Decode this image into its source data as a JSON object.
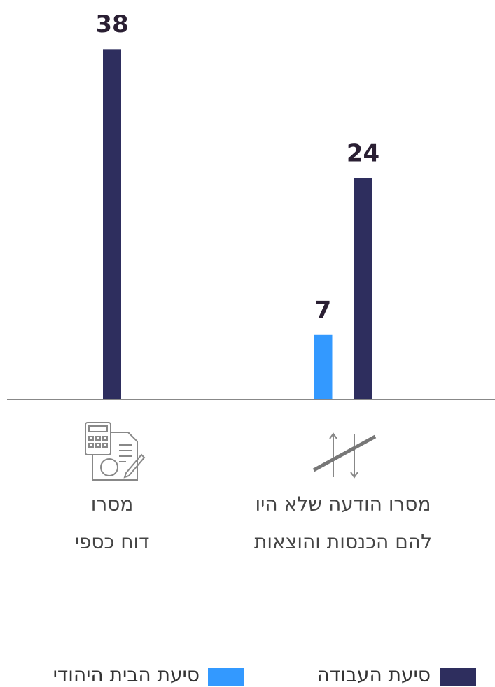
{
  "chart_data": {
    "type": "bar",
    "categories": [
      [
        "מסרו הודעה שלא היו",
        "להם הכנסות והוצאות"
      ],
      [
        "מסרו",
        "דוח כספי"
      ]
    ],
    "series": [
      {
        "name": "סיעת הבית היהודי",
        "color": "#3399ff",
        "values": [
          7,
          null
        ]
      },
      {
        "name": "סיעת העבודה",
        "color": "#2e2e5e",
        "values": [
          24,
          38
        ]
      }
    ],
    "ylim": [
      0,
      40
    ]
  }
}
